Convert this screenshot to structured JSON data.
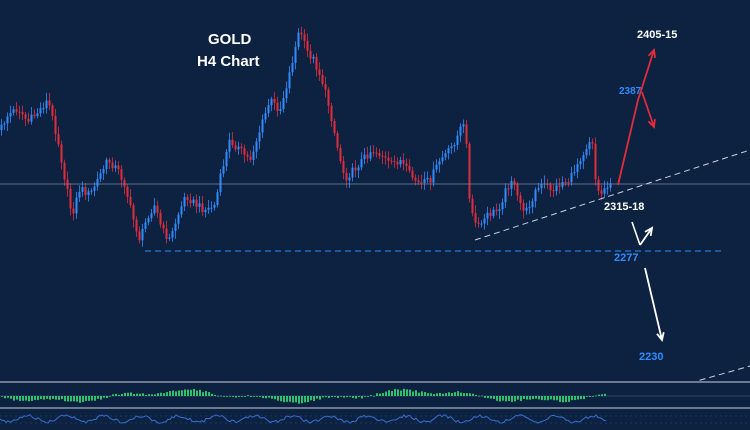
{
  "chart_data": {
    "type": "candlestick",
    "title": "GOLD",
    "subtitle": "H4 Chart",
    "annotations": {
      "upper_target": "2405-15",
      "resistance": "2387",
      "pivot": "2315-18",
      "support": "2277",
      "lower_target": "2230"
    },
    "colors": {
      "background": "#0d2240",
      "bull": "#2f8cff",
      "bear": "#e02d3c",
      "white_level": "#c8d2e0",
      "blue_level": "#2f8cff",
      "red_arrow": "#e02d3c",
      "white_arrow": "#ffffff",
      "macd_hist": "#2ec26a",
      "panel_line": "#3a6fd8"
    },
    "grid": false,
    "legend": "none"
  }
}
